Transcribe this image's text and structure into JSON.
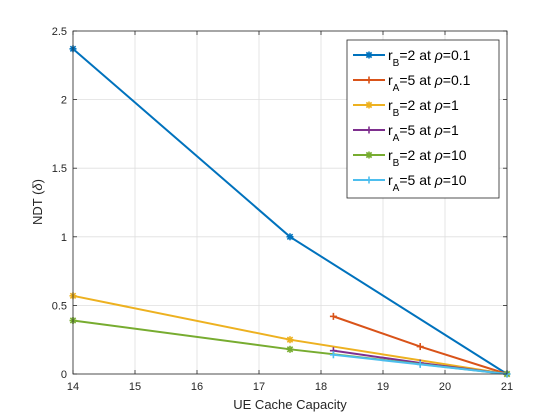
{
  "chart_data": {
    "type": "line",
    "title": "",
    "xlabel": "UE Cache Capacity",
    "ylabel_text": "NDT (",
    "ylabel_symbol": "δ",
    "ylabel_close": ")",
    "xlim": [
      14,
      21
    ],
    "ylim": [
      0,
      2.5
    ],
    "x_ticks": [
      14,
      15,
      16,
      17,
      18,
      19,
      20,
      21
    ],
    "y_ticks": [
      0,
      0.5,
      1,
      1.5,
      2,
      2.5
    ],
    "x_tick_labels": [
      "14",
      "15",
      "16",
      "17",
      "18",
      "19",
      "20",
      "21"
    ],
    "y_tick_labels": [
      "0",
      "0.5",
      "1",
      "1.5",
      "2",
      "2.5"
    ],
    "grid": true,
    "legend_position": "top-right",
    "series": [
      {
        "name": "rB=2 at ρ=0.1",
        "label_main": "r",
        "label_sub": "B",
        "label_rest": "=2 at ",
        "label_rho": "ρ",
        "label_val": "=0.1",
        "marker": "asterisk",
        "color": "#0072BD",
        "x": [
          14,
          17.5,
          21
        ],
        "y": [
          2.37,
          1.0,
          0.0
        ]
      },
      {
        "name": "rA=5 at ρ=0.1",
        "label_main": "r",
        "label_sub": "A",
        "label_rest": "=5 at ",
        "label_rho": "ρ",
        "label_val": "=0.1",
        "marker": "plus",
        "color": "#D95319",
        "x": [
          18.2,
          19.6,
          21
        ],
        "y": [
          0.42,
          0.2,
          0.0
        ]
      },
      {
        "name": "rB=2 at ρ=1",
        "label_main": "r",
        "label_sub": "B",
        "label_rest": "=2 at ",
        "label_rho": "ρ",
        "label_val": "=1",
        "marker": "asterisk",
        "color": "#EDB120",
        "x": [
          14,
          17.5,
          21
        ],
        "y": [
          0.57,
          0.25,
          0.0
        ]
      },
      {
        "name": "rA=5 at ρ=1",
        "label_main": "r",
        "label_sub": "A",
        "label_rest": "=5 at ",
        "label_rho": "ρ",
        "label_val": "=1",
        "marker": "plus",
        "color": "#7E2F8E",
        "x": [
          18.2,
          19.6,
          21
        ],
        "y": [
          0.17,
          0.08,
          0.0
        ]
      },
      {
        "name": "rB=2 at ρ=10",
        "label_main": "r",
        "label_sub": "B",
        "label_rest": "=2 at ",
        "label_rho": "ρ",
        "label_val": "=10",
        "marker": "asterisk",
        "color": "#77AC30",
        "x": [
          14,
          17.5,
          21
        ],
        "y": [
          0.39,
          0.18,
          0.0
        ]
      },
      {
        "name": "rA=5 at ρ=10",
        "label_main": "r",
        "label_sub": "A",
        "label_rest": "=5 at ",
        "label_rho": "ρ",
        "label_val": "=10",
        "marker": "plus",
        "color": "#4DBEEE",
        "x": [
          18.2,
          19.6,
          21
        ],
        "y": [
          0.14,
          0.07,
          0.0
        ]
      }
    ]
  }
}
